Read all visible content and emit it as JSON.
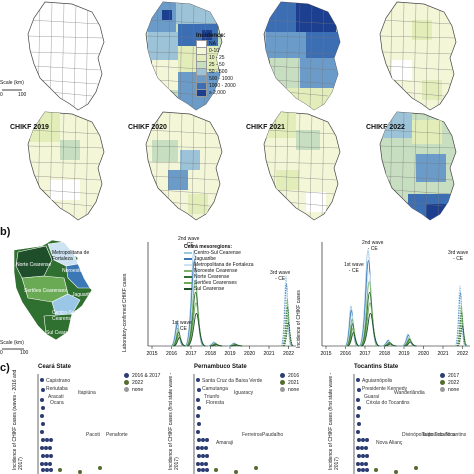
{
  "panel_a": {
    "legend_title": "Incidence:",
    "legend_items": [
      {
        "label": "NA",
        "color": "#ffffff"
      },
      {
        "label": "0-10",
        "color": "#f4f6d8"
      },
      {
        "label": "10 - 25",
        "color": "#e3edba"
      },
      {
        "label": "25 - 50",
        "color": "#c7dfc0"
      },
      {
        "label": "50 - 500",
        "color": "#9cc3d8"
      },
      {
        "label": "500 - 1000",
        "color": "#6b9bc9"
      },
      {
        "label": "1000 - 2000",
        "color": "#3c6eb3"
      },
      {
        "label": "≥ 2,000",
        "color": "#1d3f8f"
      }
    ],
    "scale_label": "Scale (km)",
    "scale_ticks": [
      "0",
      "100"
    ],
    "map_titles": [
      "CHIKF 2019",
      "CHIKF 2020",
      "CHIKF 2021",
      "CHIKF 2022"
    ]
  },
  "panel_b": {
    "letter": "b)",
    "regions": [
      "Norte Cearense",
      "Metropolitana de Fortaleza",
      "Noroeste Cearense",
      "Sertões Cearenses",
      "Jaguaribe",
      "Centro-Sul Cearense",
      "Sul Cearense"
    ],
    "scale_label": "Scale (km)",
    "scale_ticks": [
      "0",
      "100"
    ],
    "chart_left": {
      "ylabel": "Laboratory-confirmed CHIKF cases",
      "legend_title": "Ceará mesoregions:",
      "legend": [
        {
          "name": "Centro-Sul Cearense",
          "color": "#9ac7e6"
        },
        {
          "name": "Jaguaribe",
          "color": "#3b78b5"
        },
        {
          "name": "Metropolitana de Fortaleza",
          "color": "#cde3f2"
        },
        {
          "name": "Noroeste Cearense",
          "color": "#7fb36d"
        },
        {
          "name": "Norte Cearense",
          "color": "#2f6f2f"
        },
        {
          "name": "Sertões Cearenses",
          "color": "#6aaa55"
        },
        {
          "name": "Sul Cearense",
          "color": "#1f4e2a"
        }
      ],
      "annotations": [
        "1st wave\n- CE",
        "2nd wave\n- CE",
        "3rd wave\n- CE"
      ],
      "x_ticks": [
        "2015",
        "2016",
        "2017",
        "2018",
        "2019",
        "2020",
        "2021",
        "2022"
      ]
    },
    "chart_right": {
      "ylabel": "Incidence of CHIKF cases",
      "annotations": [
        "1st wave\n- CE",
        "2nd wave\n- CE",
        "3rd wave\n- CE"
      ],
      "x_ticks": [
        "2015",
        "2016",
        "2017",
        "2018",
        "2019",
        "2020",
        "2021",
        "2022"
      ]
    }
  },
  "panel_c": {
    "letter": "c)",
    "scatters": [
      {
        "title": "Ceará State",
        "ylabel": "Incidence of CHIKF cases (waves - 2016 and 2017)",
        "legend": [
          {
            "name": "2016 & 2017",
            "color": "#2d3d73"
          },
          {
            "name": "2022",
            "color": "#556b2f"
          },
          {
            "name": "none",
            "color": "#9a9a9a"
          }
        ],
        "point_labels": [
          "Capistrano",
          "Reriutaba",
          "Aracati",
          "Itapiúna",
          "Ocara",
          "Pacoti",
          "Penaforte"
        ]
      },
      {
        "title": "Pernambuco State",
        "ylabel": "Incidence of CHIKF cases (first state wave - 2017)",
        "legend": [
          {
            "name": "2016",
            "color": "#2d3d73"
          },
          {
            "name": "2021",
            "color": "#556b2f"
          },
          {
            "name": "none",
            "color": "#9a9a9a"
          }
        ],
        "point_labels": [
          "Santa Cruz da Baixa Verde",
          "Camutanga",
          "Triunfo",
          "Iguaracy",
          "Floresta",
          "Ferreiros",
          "Paudalho",
          "Amaraji"
        ]
      },
      {
        "title": "Tocantins State",
        "ylabel": "Incidence of CHIKF cases (first state wave - 2017)",
        "legend": [
          {
            "name": "2017",
            "color": "#2d3d73"
          },
          {
            "name": "2022",
            "color": "#556b2f"
          },
          {
            "name": "none",
            "color": "#9a9a9a"
          }
        ],
        "point_labels": [
          "Aguiarnópolis",
          "Presidente Kennedy",
          "Guaraí",
          "Wanderlândia",
          "Crixás do Tocantins",
          "Divinópolis do Tocantins",
          "Taipoã do Tocantins",
          "Nova Alianç"
        ]
      }
    ]
  }
}
